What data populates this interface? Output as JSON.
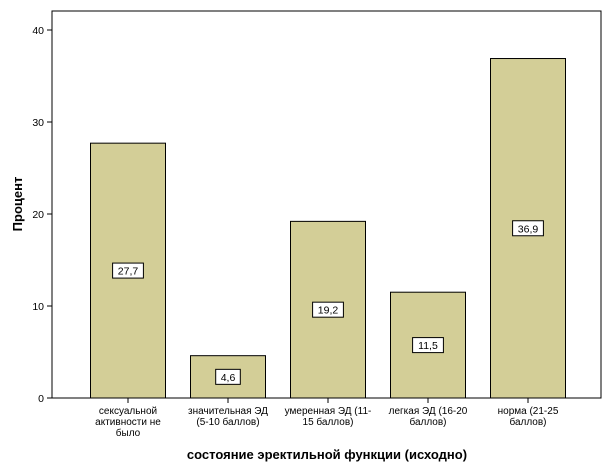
{
  "chart_data": {
    "type": "bar",
    "categories": [
      "сексуальной активности не было",
      "значительная ЭД (5-10 баллов)",
      "умеренная ЭД (11-15 баллов)",
      "легкая ЭД (16-20 баллов)",
      "норма (21-25 баллов)"
    ],
    "category_label_lines": [
      [
        "сексуальной",
        "активности не",
        "было"
      ],
      [
        "значительная ЭД",
        "(5-10 баллов)"
      ],
      [
        "умеренная ЭД (11-",
        "15 баллов)"
      ],
      [
        "легкая ЭД (16-20",
        "баллов)"
      ],
      [
        "норма (21-25",
        "баллов)"
      ]
    ],
    "values": [
      27.7,
      4.6,
      19.2,
      11.5,
      36.9
    ],
    "data_labels": [
      "27,7",
      "4,6",
      "19,2",
      "11,5",
      "36,9"
    ],
    "title": "",
    "xlabel": "состояние эректильной функции (исходно)",
    "ylabel": "Процент",
    "ylim": [
      0,
      40
    ],
    "yticks": [
      0,
      10,
      20,
      30,
      40
    ],
    "ytick_labels": [
      "0",
      "10",
      "20",
      "30",
      "40"
    ],
    "grid": false,
    "legend": "none",
    "colors": {
      "bar_fill": "#d3ce97",
      "bar_stroke": "#000000",
      "axis": "#000000",
      "label_box_fill": "#ffffff"
    }
  }
}
